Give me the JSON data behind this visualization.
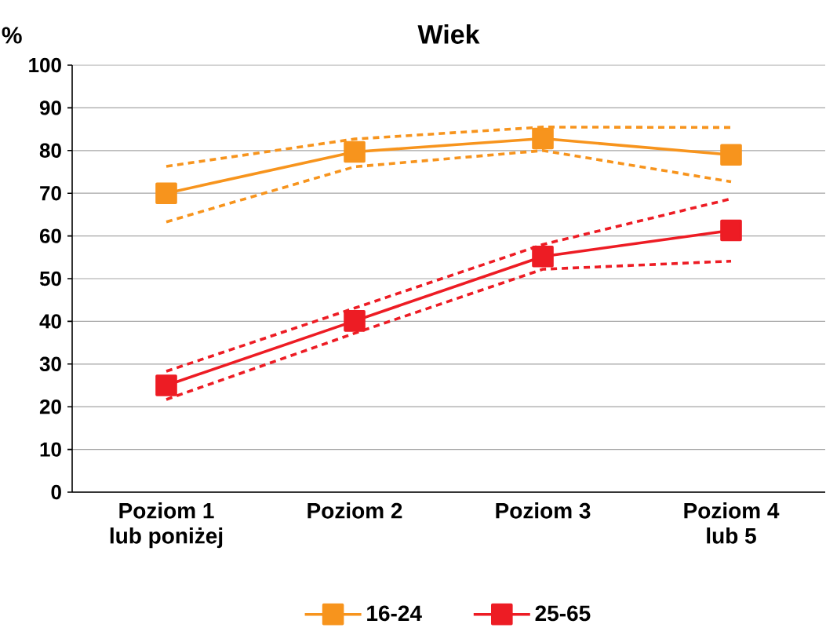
{
  "chart_data": {
    "type": "line",
    "title": "Wiek",
    "ylabel": "%",
    "categories": [
      "Poziom 1 lub poniżej",
      "Poziom 2",
      "Poziom 3",
      "Poziom 4 lub 5"
    ],
    "series": [
      {
        "name": "16-24",
        "color": "#f7941d",
        "values": [
          70,
          79.7,
          82.8,
          79
        ]
      },
      {
        "name": "25-65",
        "color": "#ed1c24",
        "values": [
          25,
          40.1,
          55.2,
          61.3
        ]
      },
      {
        "color": "#f7941d",
        "values": [
          76.3,
          82.7,
          85.5,
          85.4
        ],
        "line_style": "dashed",
        "marker": "none"
      },
      {
        "color": "#f7941d",
        "values": [
          63.3,
          76.2,
          80,
          72.7
        ],
        "line_style": "dashed",
        "marker": "none"
      },
      {
        "color": "#ed1c24",
        "values": [
          28.3,
          43.1,
          58,
          68.7
        ],
        "line_style": "dashed",
        "marker": "none"
      },
      {
        "color": "#ed1c24",
        "values": [
          21.7,
          37.2,
          52.2,
          54.1
        ],
        "line_style": "dashed",
        "marker": "none"
      }
    ],
    "ylim": [
      0,
      100
    ],
    "yticks": [
      0,
      10,
      20,
      30,
      40,
      50,
      60,
      70,
      80,
      90,
      100
    ],
    "grid": "y",
    "legend": "bottom",
    "marker": "square",
    "line_style": "solid"
  }
}
